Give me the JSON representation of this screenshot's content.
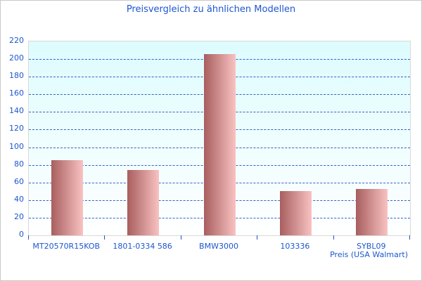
{
  "chart_data": {
    "type": "bar",
    "title": "Preisvergleich zu ähnlichen Modellen",
    "categories": [
      "MT20570R15KOB",
      "1801-0334 586",
      "BMW3000",
      "103336",
      "SYBL09"
    ],
    "values": [
      85,
      74,
      206,
      50,
      53
    ],
    "xlabel": "Preis (USA Walmart)",
    "ylabel": "",
    "ylim": [
      0,
      220
    ],
    "ytick_step": 20,
    "yticks": [
      0,
      20,
      40,
      60,
      80,
      100,
      120,
      140,
      160,
      180,
      200,
      220
    ],
    "grid": "horizontal-dashed",
    "legend": false
  },
  "colors": {
    "title_text": "#1c57cf",
    "axis_text": "#1c57cf",
    "gridline": "#3a60c4",
    "tick_mark": "#2a52c0",
    "plot_bg_top": "#ddfcfe",
    "plot_bg_bottom": "#ffffff",
    "plot_border": "#d9d9d9",
    "frame_border": "#c9c9c9",
    "bar_gradient_left": "#a85e5e",
    "bar_gradient_right": "#f9c2c2"
  }
}
